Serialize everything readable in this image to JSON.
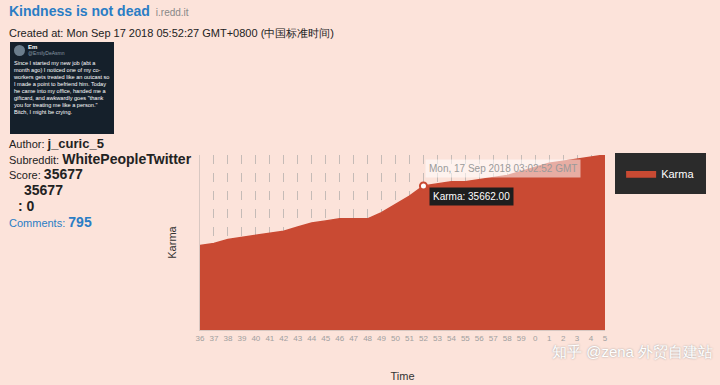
{
  "post": {
    "title": "Kindness is not dead",
    "domain": "i.redd.it",
    "created": "Created at: Mon Sep 17 2018 05:52:27 GMT+0800 (中国标准时间)",
    "thumbnail": {
      "name": "Em",
      "handle": "@EmilyDeAsmn",
      "text": "Since I started my new job (abt a month ago) I noticed one of my co-workers gets treated like an outcast so I made a point to befriend him. Today he came into my office, handed me a giftcard, and awkwardly goes \"thank you for treating me like a person.\" Bitch, I might be crying."
    },
    "author_label": "Author:",
    "author": "j_curic_5",
    "subreddit_label": "Subreddit:",
    "subreddit": "WhitePeopleTwitter",
    "score_label": "Score:",
    "score": 35677,
    "upvotes": 35677,
    "downvotes_prefix": ":",
    "downvotes": 0,
    "comments_label": "Comments:",
    "comments": 795
  },
  "watermark": "知乎 @zena 外贸自建站",
  "chart_data": {
    "type": "area",
    "y_label": "Karma",
    "x_label": "Time",
    "categories": [
      "36",
      "37",
      "38",
      "39",
      "40",
      "41",
      "42",
      "43",
      "44",
      "45",
      "46",
      "47",
      "48",
      "49",
      "50",
      "51",
      "52",
      "53",
      "54",
      "55",
      "56",
      "57",
      "58",
      "59",
      "0",
      "1",
      "2",
      "3",
      "4",
      "5"
    ],
    "series": [
      {
        "name": "Karma",
        "color": "#c94a33",
        "values": [
          35633,
          35634,
          35636,
          35637,
          35638,
          35639,
          35640,
          35642,
          35644,
          35645,
          35646,
          35646,
          35646,
          35649,
          35653,
          35657,
          35662,
          35663,
          35664,
          35664,
          35665,
          35666,
          35667,
          35669,
          35671,
          35673,
          35674,
          35675,
          35676,
          35677
        ]
      }
    ],
    "ylim": [
      35592,
      35677
    ],
    "tick_labels": "x",
    "grid": true,
    "legend": "right",
    "tooltip": {
      "category": "52",
      "value": 35662,
      "title": "Mon, 17 Sep 2018 03:02:52 GMT",
      "text": "Karma: 35662.00"
    }
  }
}
